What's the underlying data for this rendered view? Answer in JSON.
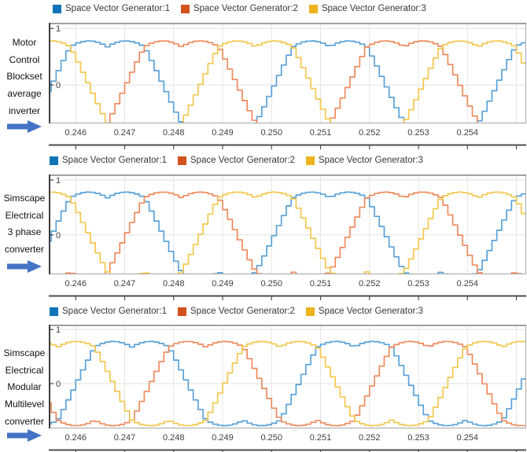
{
  "left_labels": [
    {
      "lines": [
        "Motor",
        "Control",
        "Blockset",
        "average",
        "inverter"
      ],
      "arrow_icon": "right-arrow",
      "arrow_color": "#4472C4"
    },
    {
      "lines": [
        "Simscape",
        "Electrical",
        "3 phase",
        "converter"
      ],
      "arrow_icon": "right-arrow",
      "arrow_color": "#4472C4"
    },
    {
      "lines": [
        "Simscape",
        "Electrical",
        "Modular",
        "Multilevel",
        "converter"
      ],
      "arrow_icon": "right-arrow",
      "arrow_color": "#4472C4"
    }
  ],
  "chart_data": [
    {
      "type": "line",
      "panel_label": "Motor Control Blockset average inverter",
      "x_range": [
        0.24545,
        0.2552
      ],
      "x_gridlines": [
        0.246,
        0.247,
        0.248,
        0.249,
        0.25,
        0.251,
        0.252,
        0.253,
        0.254,
        0.255
      ],
      "x_ticks": [
        {
          "v": 0.246,
          "label": "0.246"
        },
        {
          "v": 0.247,
          "label": "0.247"
        },
        {
          "v": 0.248,
          "label": "0.248"
        },
        {
          "v": 0.249,
          "label": "0.249"
        },
        {
          "v": 0.25,
          "label": "0.250"
        },
        {
          "v": 0.251,
          "label": "0.251"
        },
        {
          "v": 0.252,
          "label": "0.252"
        },
        {
          "v": 0.253,
          "label": "0.253"
        },
        {
          "v": 0.254,
          "label": "0.254"
        }
      ],
      "y_range": [
        -0.68,
        1.1
      ],
      "y_ticks": [
        {
          "v": 1,
          "label": "1"
        },
        {
          "v": 0,
          "label": "0"
        }
      ],
      "grid": true,
      "legend_position": "top",
      "series": [
        {
          "name": "Space Vector Generator:1",
          "color": "#5AA2D8",
          "swatch_color": "#0F74B8",
          "phase_deg": 0
        },
        {
          "name": "Space Vector Generator:2",
          "color": "#EE8B5E",
          "swatch_color": "#D3511C",
          "phase_deg": -120
        },
        {
          "name": "Space Vector Generator:3",
          "color": "#F3C74F",
          "swatch_color": "#EEB41E",
          "phase_deg": -240
        }
      ],
      "waveform": {
        "kind": "svpwm_zoh_staircase",
        "frequency_hz": 220,
        "modulation_index": 0.9,
        "amplitude_peak": 0.78,
        "sample_time_s": 0.0001,
        "phase1_plateau_center_s": 0.2466
      }
    },
    {
      "type": "line",
      "panel_label": "Simscape Electrical 3 phase converter",
      "x_range": [
        0.24545,
        0.2552
      ],
      "x_gridlines": [
        0.246,
        0.247,
        0.248,
        0.249,
        0.25,
        0.251,
        0.252,
        0.253,
        0.254,
        0.255
      ],
      "x_ticks": [
        {
          "v": 0.246,
          "label": "0.246"
        },
        {
          "v": 0.247,
          "label": "0.247"
        },
        {
          "v": 0.248,
          "label": "0.248"
        },
        {
          "v": 0.249,
          "label": "0.249"
        },
        {
          "v": 0.25,
          "label": "0.250"
        },
        {
          "v": 0.251,
          "label": "0.251"
        },
        {
          "v": 0.252,
          "label": "0.252"
        },
        {
          "v": 0.253,
          "label": "0.253"
        },
        {
          "v": 0.254,
          "label": "0.254"
        }
      ],
      "y_range": [
        -0.72,
        1.1
      ],
      "y_ticks": [
        {
          "v": 1,
          "label": "1"
        },
        {
          "v": 0,
          "label": "0"
        }
      ],
      "grid": true,
      "legend_position": "top",
      "series": [
        {
          "name": "Space Vector Generator:1",
          "color": "#5AA2D8",
          "swatch_color": "#0F74B8",
          "phase_deg": 0
        },
        {
          "name": "Space Vector Generator:2",
          "color": "#EE8B5E",
          "swatch_color": "#D3511C",
          "phase_deg": -120
        },
        {
          "name": "Space Vector Generator:3",
          "color": "#F3C74F",
          "swatch_color": "#EEB41E",
          "phase_deg": -240
        }
      ],
      "waveform": {
        "kind": "svpwm_zoh_staircase",
        "frequency_hz": 220,
        "modulation_index": 0.9,
        "amplitude_peak": 0.78,
        "sample_time_s": 0.0001,
        "phase1_plateau_center_s": 0.2466
      }
    },
    {
      "type": "line",
      "panel_label": "Simscape Electrical Modular Multilevel converter",
      "x_range": [
        0.24545,
        0.2552
      ],
      "x_gridlines": [
        0.246,
        0.247,
        0.248,
        0.249,
        0.25,
        0.251,
        0.252,
        0.253,
        0.254,
        0.255
      ],
      "x_ticks": [
        {
          "v": 0.246,
          "label": "0.246"
        },
        {
          "v": 0.247,
          "label": "0.247"
        },
        {
          "v": 0.248,
          "label": "0.248"
        },
        {
          "v": 0.249,
          "label": "0.249"
        },
        {
          "v": 0.25,
          "label": "0.250"
        },
        {
          "v": 0.251,
          "label": "0.251"
        },
        {
          "v": 0.252,
          "label": "0.252"
        },
        {
          "v": 0.253,
          "label": "0.253"
        },
        {
          "v": 0.254,
          "label": "0.254"
        }
      ],
      "y_range": [
        -0.83,
        1.09
      ],
      "y_ticks": [
        {
          "v": 1,
          "label": "1"
        },
        {
          "v": 0,
          "label": "0"
        }
      ],
      "grid": true,
      "legend_position": "top",
      "series": [
        {
          "name": "Space Vector Generator:1",
          "color": "#5AA2D8",
          "swatch_color": "#0F74B8",
          "phase_deg": 0
        },
        {
          "name": "Space Vector Generator:2",
          "color": "#EE8B5E",
          "swatch_color": "#D3511C",
          "phase_deg": -120
        },
        {
          "name": "Space Vector Generator:3",
          "color": "#F3C74F",
          "swatch_color": "#EEB41E",
          "phase_deg": -240
        }
      ],
      "waveform": {
        "kind": "svpwm_zoh_staircase",
        "frequency_hz": 220,
        "modulation_index": 0.9,
        "amplitude_peak": 0.78,
        "sample_time_s": 0.0001,
        "phase1_plateau_center_s": 0.2471
      }
    }
  ]
}
